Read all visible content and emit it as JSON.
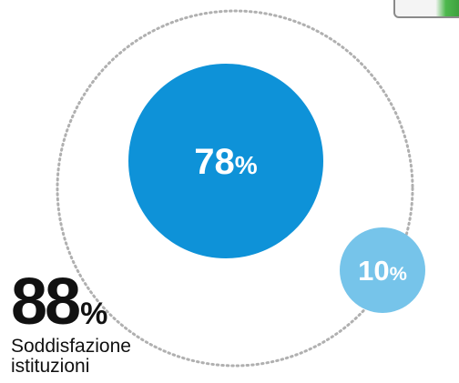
{
  "chart_data": {
    "type": "bubble",
    "total": {
      "value": 88,
      "unit": "%",
      "label_line1": "Soddisfazione",
      "label_line2": "istituzioni"
    },
    "series": [
      {
        "value": 78,
        "unit": "%",
        "color": "#0e92d8"
      },
      {
        "value": 10,
        "unit": "%",
        "color": "#76c4ea"
      }
    ],
    "outline_color": "#b0b0b0"
  },
  "icons": {
    "corner": "device-thumbnail-icon"
  }
}
